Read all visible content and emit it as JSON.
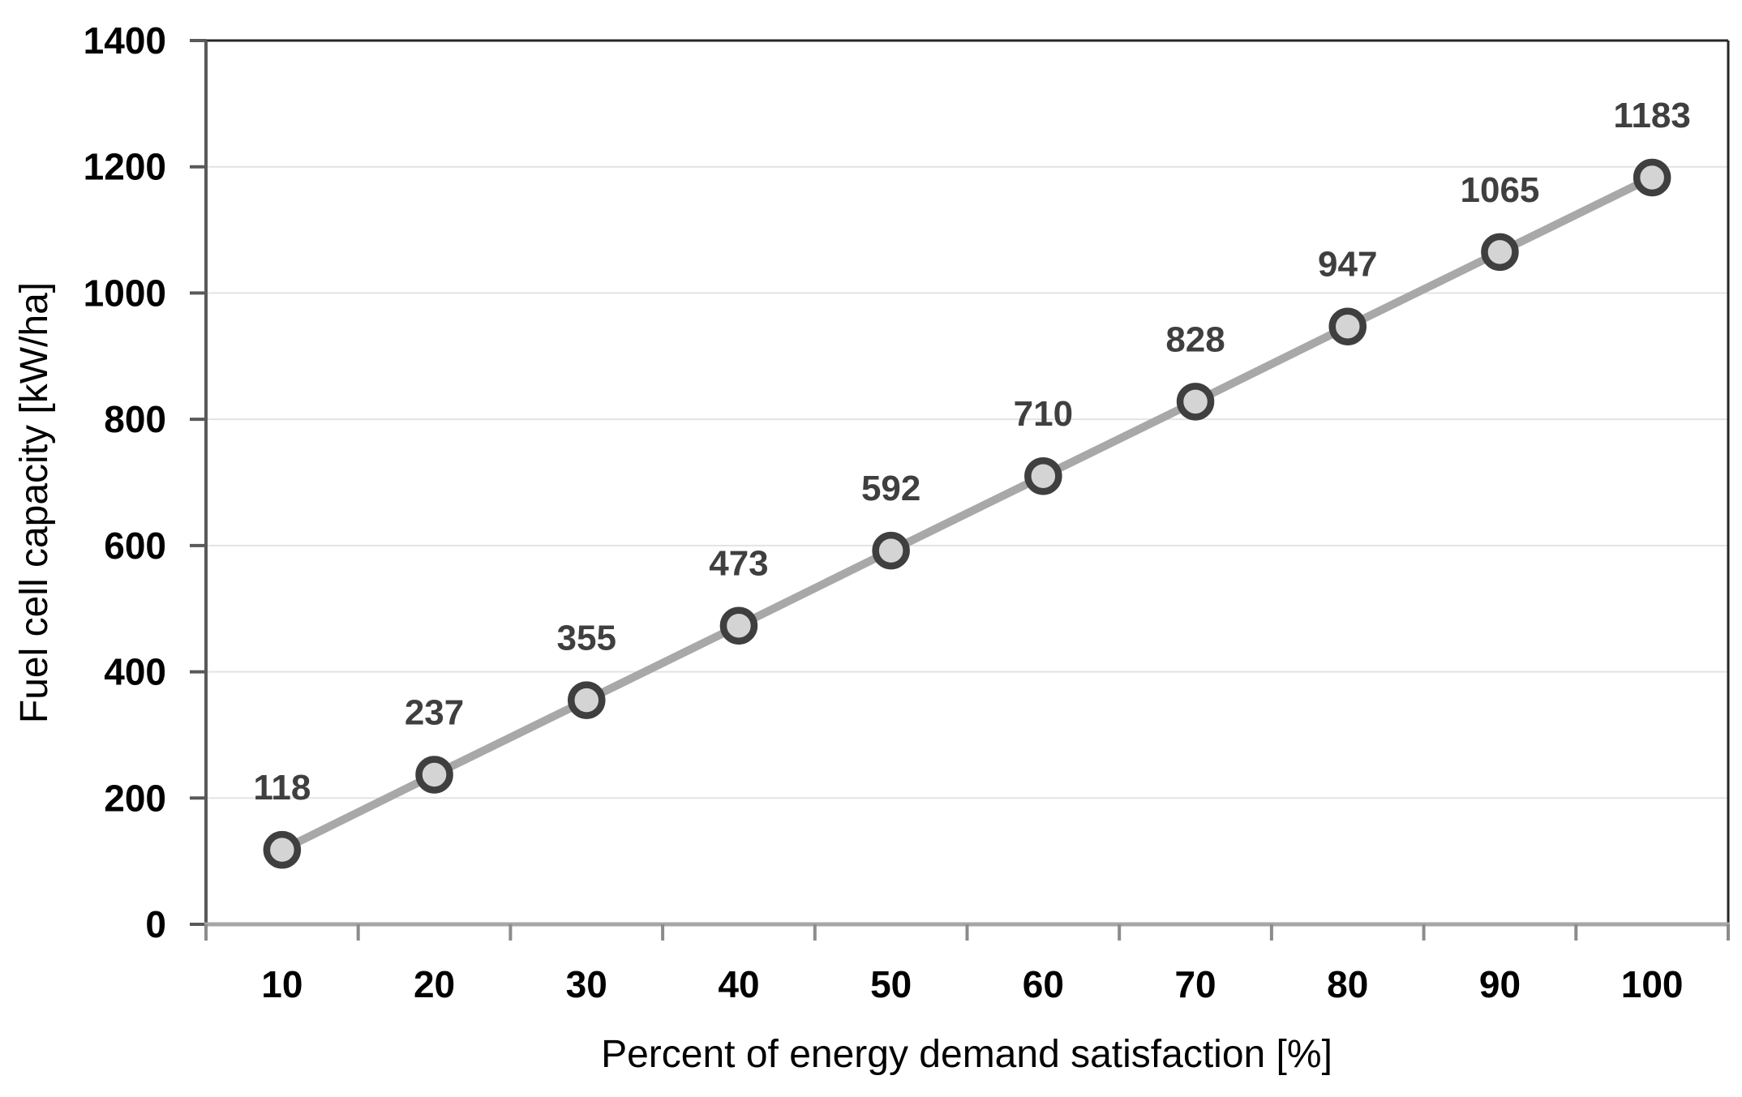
{
  "chart_data": {
    "type": "line",
    "title": "",
    "x": [
      10,
      20,
      30,
      40,
      50,
      60,
      70,
      80,
      90,
      100
    ],
    "series": [
      {
        "name": "Fuel cell capacity",
        "values": [
          118,
          237,
          355,
          473,
          592,
          710,
          828,
          947,
          1065,
          1183
        ]
      }
    ],
    "data_labels": [
      118,
      237,
      355,
      473,
      592,
      710,
      828,
      947,
      1065,
      1183
    ],
    "xlabel": "Percent of energy demand satisfaction [%]",
    "ylabel": "Fuel cell capacity [kW/ha]",
    "xlim_categories": [
      10,
      100
    ],
    "ylim": [
      0,
      1400
    ],
    "yticks": [
      0,
      200,
      400,
      600,
      800,
      1000,
      1200,
      1400
    ],
    "xticks": [
      10,
      20,
      30,
      40,
      50,
      60,
      70,
      80,
      90,
      100
    ],
    "grid": "horizontal",
    "legend": "none",
    "marker": "circle",
    "colors": {
      "line": "#a8a8a8",
      "marker_fill": "#d4d4d4",
      "marker_stroke": "#3f3f3f",
      "data_label": "#3f3f3f",
      "gridline": "#e3e3e3",
      "x_axis_line": "#a6a6a6",
      "y_axis_line": "#595959",
      "boundary_tick": "#8c8c8c",
      "plot_border": "#262626",
      "tick_text": "#000000",
      "background": "#ffffff"
    }
  }
}
